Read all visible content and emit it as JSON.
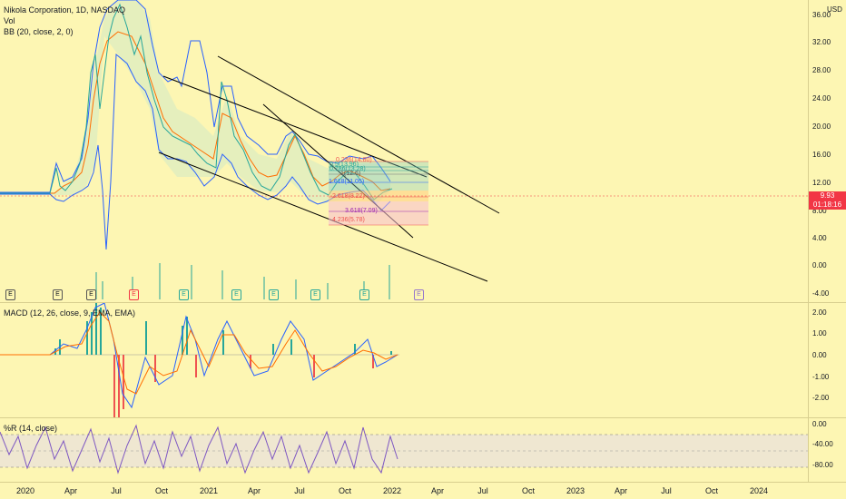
{
  "symbol": {
    "title": "Nikola Corporation, 1D, NASDAQ",
    "volume_label": "Vol",
    "bb_label": "BB (20, close, 2, 0)"
  },
  "macd": {
    "label": "MACD (12, 26, close, 9, EMA, EMA)"
  },
  "wr": {
    "label": "%R (14, close)"
  },
  "currency": "USD",
  "price_scale": [
    "36.00",
    "32.00",
    "28.00",
    "24.00",
    "20.00",
    "16.00",
    "12.00",
    "8.00",
    "4.00",
    "0.00",
    "-4.00"
  ],
  "macd_scale": [
    "2.00",
    "1.00",
    "0.00",
    "-1.00",
    "-2.00"
  ],
  "wr_scale": [
    "0.00",
    "-40.00",
    "-80.00"
  ],
  "last_price": "9.93",
  "countdown": "01:18:16",
  "time_axis": [
    "2020",
    "Apr",
    "Jul",
    "Oct",
    "2021",
    "Apr",
    "Jul",
    "Oct",
    "2022",
    "Apr",
    "Jul",
    "Oct",
    "2023",
    "Apr",
    "Jul",
    "Oct",
    "2024"
  ],
  "earnings_badge": "E",
  "fib_levels": [
    {
      "text": "0.236(14.80)"
    },
    {
      "text": "0.5(13.96)"
    },
    {
      "text": "0.786(13.28)"
    },
    {
      "text": "1(12.6)"
    },
    {
      "text": "1.618(11.05)"
    },
    {
      "text": "2.618(8.22)"
    },
    {
      "text": "3.618(7.09)"
    },
    {
      "text": "4.236(5.78)"
    }
  ],
  "colors": {
    "background": "#fdf6b3",
    "bollinger_band": "#2962ff",
    "ema": "#ff6d00",
    "macd_up": "#26a69a",
    "macd_down": "#ef5350",
    "wr_line": "#7e57c2",
    "price_line": "#f23645"
  }
}
